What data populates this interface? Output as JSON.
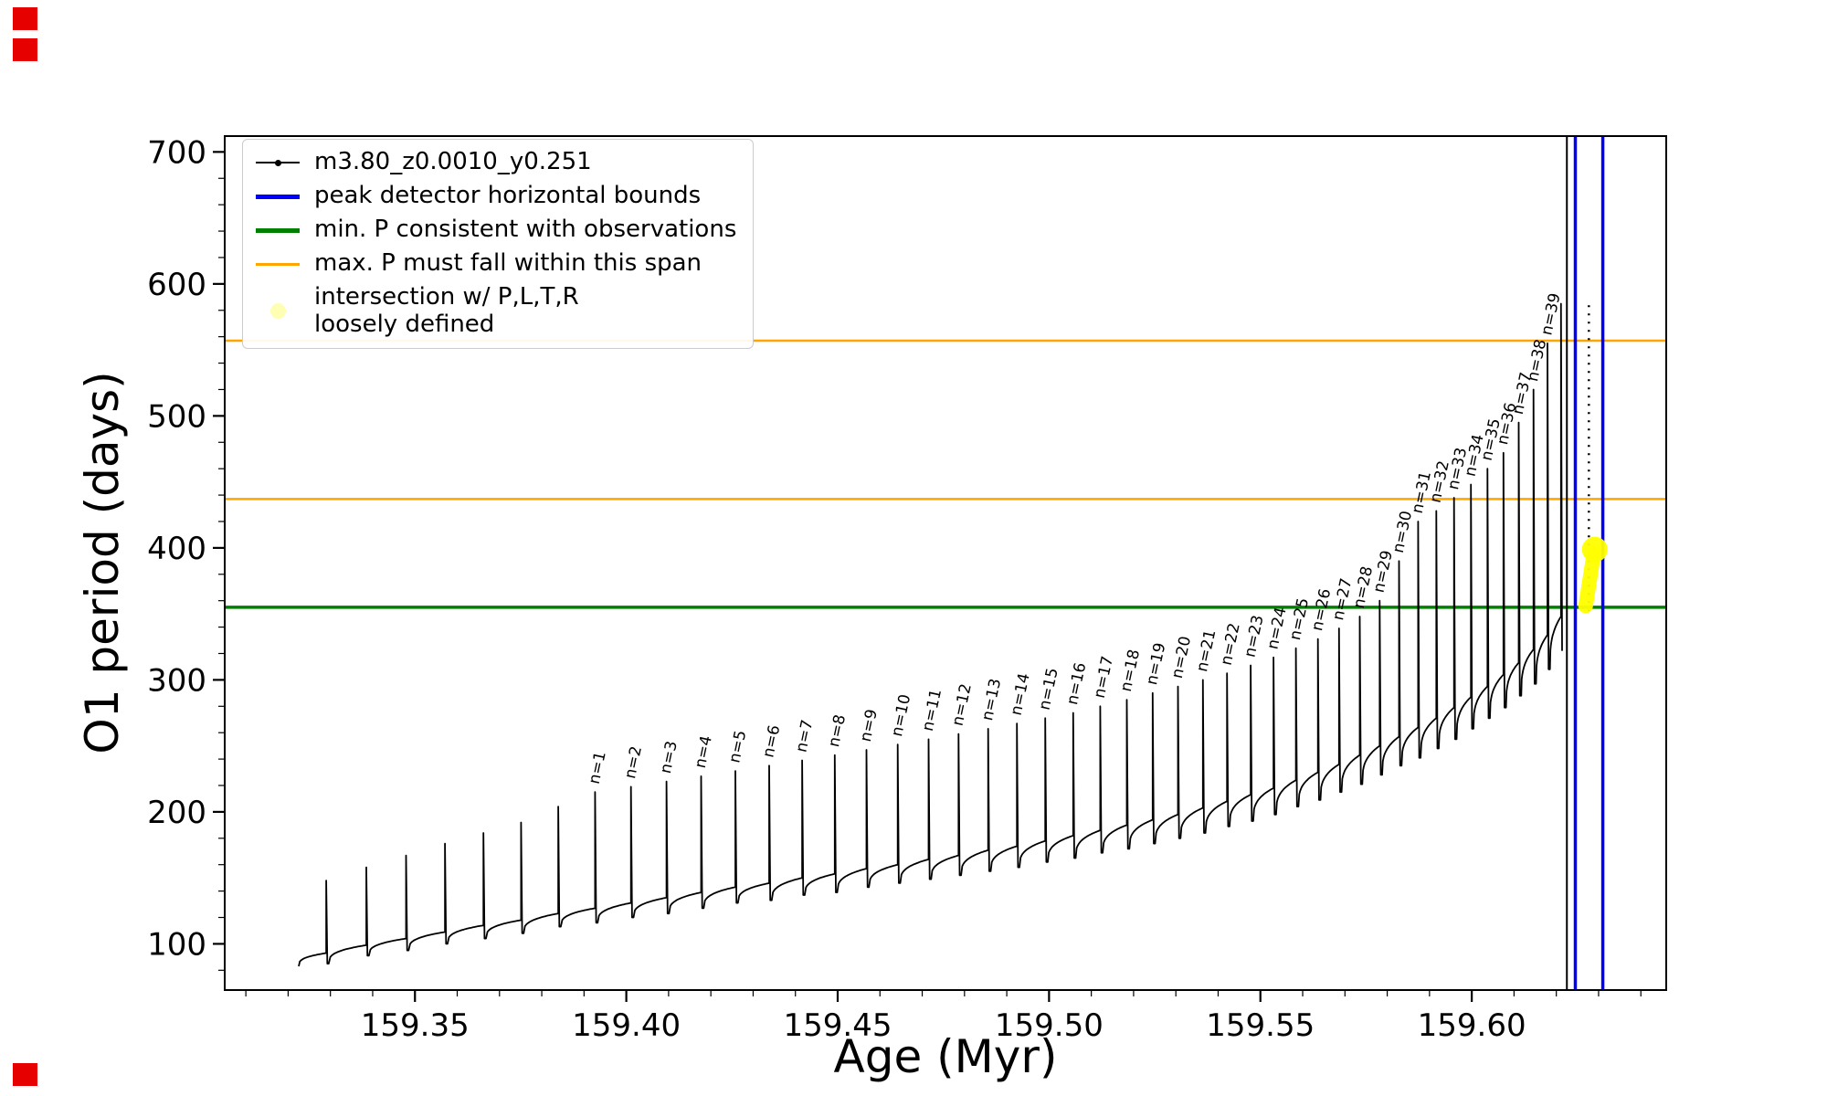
{
  "figure": {
    "xlabel": "Age (Myr)",
    "ylabel": "O1 period (days)",
    "xlim": [
      159.305,
      159.646
    ],
    "ylim": [
      65,
      712
    ],
    "xtick_values": [
      159.35,
      159.4,
      159.45,
      159.5,
      159.55,
      159.6
    ],
    "xtick_labels": [
      "159.35",
      "159.40",
      "159.45",
      "159.50",
      "159.55",
      "159.60"
    ],
    "ytick_values": [
      100,
      200,
      300,
      400,
      500,
      600,
      700
    ],
    "ytick_labels": [
      "100",
      "200",
      "300",
      "400",
      "500",
      "600",
      "700"
    ],
    "x_minor_step": 0.01,
    "y_minor_step": 20,
    "background": "#ffffff"
  },
  "legend": {
    "items": [
      {
        "label": "m3.80_z0.0010_y0.251",
        "color": "#000000",
        "style": "line-marker"
      },
      {
        "label": "peak detector horizontal bounds",
        "color": "#0000ff",
        "style": "thick-line"
      },
      {
        "label": "min. P consistent with observations",
        "color": "#008000",
        "style": "thick-line"
      },
      {
        "label": "max. P must fall within this span",
        "color": "#ffa500",
        "style": "line"
      },
      {
        "label": "intersection w/ P,L,T,R\nloosely defined",
        "color": "#ffffb3",
        "style": "marker"
      }
    ]
  },
  "decor": {
    "red_marker_color": "#e60000"
  },
  "chart_data": {
    "type": "line",
    "title": "",
    "xlabel": "Age (Myr)",
    "ylabel": "O1 period (days)",
    "xlim": [
      159.305,
      159.646
    ],
    "ylim": [
      65,
      712
    ],
    "grid": false,
    "legend_position": "upper left",
    "series_name": "m3.80_z0.0010_y0.251",
    "series_color": "#000000",
    "description": "Sawtooth stellar pulsation track: slowly rising baseline with narrow vertical spikes labeled n=1..n=39",
    "arc_exponent": 0.32,
    "baseline_start": {
      "x": 159.3225,
      "y": 83
    },
    "spike_columns": [
      "x",
      "base",
      "peak",
      "min_after",
      "label"
    ],
    "spikes": [
      [
        159.329,
        93,
        148,
        85,
        ""
      ],
      [
        159.3385,
        99,
        158,
        91,
        ""
      ],
      [
        159.3479,
        104,
        167,
        95,
        ""
      ],
      [
        159.3571,
        109,
        176,
        100,
        ""
      ],
      [
        159.3662,
        114,
        184,
        104,
        ""
      ],
      [
        159.3751,
        118,
        192,
        108,
        ""
      ],
      [
        159.3839,
        123,
        204,
        113,
        ""
      ],
      [
        159.3926,
        127,
        215,
        116,
        "n=1"
      ],
      [
        159.4011,
        131,
        219,
        120,
        "n=2"
      ],
      [
        159.4095,
        135,
        223,
        123,
        "n=3"
      ],
      [
        159.4177,
        139,
        227,
        127,
        "n=4"
      ],
      [
        159.4258,
        143,
        231,
        131,
        "n=5"
      ],
      [
        159.4338,
        146,
        235,
        133,
        "n=6"
      ],
      [
        159.4416,
        150,
        239,
        137,
        "n=7"
      ],
      [
        159.4493,
        153,
        243,
        139,
        "n=8"
      ],
      [
        159.4568,
        157,
        247,
        143,
        "n=9"
      ],
      [
        159.4642,
        160,
        251,
        146,
        "n=10"
      ],
      [
        159.4715,
        164,
        255,
        149,
        "n=11"
      ],
      [
        159.4786,
        167,
        259,
        152,
        "n=12"
      ],
      [
        159.4856,
        171,
        263,
        155,
        "n=13"
      ],
      [
        159.4924,
        174,
        267,
        158,
        "n=14"
      ],
      [
        159.4991,
        178,
        271,
        162,
        "n=15"
      ],
      [
        159.5057,
        182,
        275,
        165,
        "n=16"
      ],
      [
        159.5121,
        186,
        280,
        169,
        "n=17"
      ],
      [
        159.5184,
        190,
        285,
        172,
        "n=18"
      ],
      [
        159.5245,
        194,
        290,
        176,
        "n=19"
      ],
      [
        159.5305,
        198,
        295,
        180,
        "n=20"
      ],
      [
        159.5364,
        203,
        300,
        184,
        "n=21"
      ],
      [
        159.5421,
        208,
        305,
        189,
        "n=22"
      ],
      [
        159.5477,
        213,
        311,
        193,
        "n=23"
      ],
      [
        159.5531,
        218,
        317,
        198,
        "n=24"
      ],
      [
        159.5584,
        224,
        324,
        204,
        "n=25"
      ],
      [
        159.5636,
        230,
        331,
        209,
        "n=26"
      ],
      [
        159.5686,
        236,
        339,
        215,
        "n=27"
      ],
      [
        159.5735,
        243,
        348,
        221,
        "n=28"
      ],
      [
        159.5782,
        250,
        360,
        228,
        "n=29"
      ],
      [
        159.5828,
        257,
        390,
        235,
        "n=30"
      ],
      [
        159.5873,
        264,
        420,
        241,
        "n=31"
      ],
      [
        159.5916,
        271,
        428,
        248,
        "n=32"
      ],
      [
        159.5958,
        279,
        438,
        255,
        "n=33"
      ],
      [
        159.5998,
        287,
        448,
        263,
        "n=34"
      ],
      [
        159.6037,
        295,
        460,
        271,
        "n=35"
      ],
      [
        159.6075,
        304,
        472,
        279,
        "n=36"
      ],
      [
        159.6111,
        313,
        495,
        288,
        "n=37"
      ],
      [
        159.6146,
        323,
        520,
        297,
        "n=38"
      ],
      [
        159.6179,
        334,
        555,
        308,
        "n=39"
      ],
      [
        159.6211,
        348,
        585,
        322,
        ""
      ]
    ],
    "hlines": [
      {
        "y": 355,
        "color": "#008000",
        "width": 3.5,
        "meaning": "min. P consistent with observations"
      },
      {
        "y": 437,
        "color": "#ffa500",
        "width": 2.5,
        "meaning": "max. P span lower bound"
      },
      {
        "y": 557,
        "color": "#ffa500",
        "width": 2.5,
        "meaning": "max. P span upper bound"
      }
    ],
    "vlines": [
      {
        "x": 159.6225,
        "color": "#000000",
        "width": 2,
        "meaning": "detected peak"
      },
      {
        "x": 159.6245,
        "color": "#0000ff",
        "width": 3.5,
        "meaning": "peak detector left bound"
      },
      {
        "x": 159.631,
        "color": "#0000ff",
        "width": 3.5,
        "meaning": "peak detector right bound"
      }
    ],
    "peak_dotted_line": {
      "x": 159.6277,
      "y_from": 352,
      "y_to": 588,
      "color": "#000000"
    },
    "intersection_marker": {
      "x": 159.6278,
      "y_bottom": 356,
      "y_top": 396,
      "color": "#ffff00",
      "meaning": "intersection w/ P,L,T,R loosely defined"
    }
  }
}
